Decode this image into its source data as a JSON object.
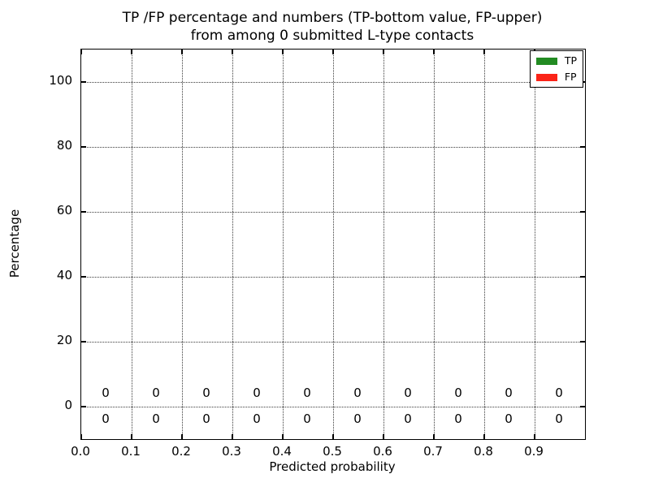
{
  "figure": {
    "background": "#ffffff",
    "title_line1": "TP /FP percentage and numbers (TP-bottom value, FP-upper)",
    "title_line2": "from among 0 submitted L-type contacts"
  },
  "chart_data": {
    "type": "bar",
    "title": "TP /FP percentage and numbers (TP-bottom value, FP-upper) from among 0 submitted L-type contacts",
    "xlabel": "Predicted probability",
    "ylabel": "Percentage",
    "xlim": [
      0.0,
      1.0
    ],
    "ylim": [
      -10,
      110
    ],
    "grid": true,
    "grid_style": "dotted",
    "legend_position": "upper right",
    "xtick_values": [
      0.0,
      0.1,
      0.2,
      0.3,
      0.4,
      0.5,
      0.6,
      0.7,
      0.8,
      0.9
    ],
    "xtick_labels": [
      "0.0",
      "0.1",
      "0.2",
      "0.3",
      "0.4",
      "0.5",
      "0.6",
      "0.7",
      "0.8",
      "0.9"
    ],
    "ytick_values": [
      0,
      20,
      40,
      60,
      80,
      100
    ],
    "ytick_labels": [
      "0",
      "20",
      "40",
      "60",
      "80",
      "100"
    ],
    "categories": [
      0.05,
      0.15,
      0.25,
      0.35,
      0.45,
      0.55,
      0.65,
      0.75,
      0.85,
      0.95
    ],
    "series": [
      {
        "name": "TP",
        "color": "#228b22",
        "annotation_row": "bottom",
        "values": [
          0,
          0,
          0,
          0,
          0,
          0,
          0,
          0,
          0,
          0
        ],
        "count_labels": [
          "0",
          "0",
          "0",
          "0",
          "0",
          "0",
          "0",
          "0",
          "0",
          "0"
        ]
      },
      {
        "name": "FP",
        "color": "#fb2418",
        "annotation_row": "upper",
        "values": [
          0,
          0,
          0,
          0,
          0,
          0,
          0,
          0,
          0,
          0
        ],
        "count_labels": [
          "0",
          "0",
          "0",
          "0",
          "0",
          "0",
          "0",
          "0",
          "0",
          "0"
        ]
      }
    ]
  }
}
